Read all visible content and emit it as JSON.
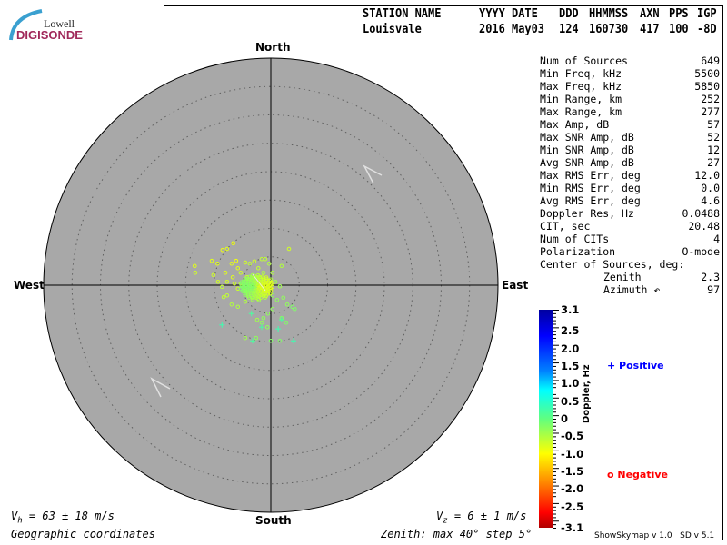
{
  "logo": {
    "line1": "Lowell",
    "line2": "DIGISONDE"
  },
  "header": {
    "labels": [
      "STATION NAME",
      "YYYY DATE",
      "DDD",
      "HHMMSS",
      "AXN",
      "PPS",
      "IGP"
    ],
    "values": [
      "Louisvale",
      "2016 May03",
      "124",
      "160730",
      "417",
      "100",
      "-8D"
    ]
  },
  "compass": {
    "north": "North",
    "south": "South",
    "east": "East",
    "west": "West"
  },
  "stats": [
    {
      "label": "Num of Sources",
      "value": "649"
    },
    {
      "label": "Min Freq, kHz",
      "value": "5500"
    },
    {
      "label": "Max Freq, kHz",
      "value": "5850"
    },
    {
      "label": "Min Range, km",
      "value": "252"
    },
    {
      "label": "Max Range, km",
      "value": "277"
    },
    {
      "label": "Max Amp, dB",
      "value": "57"
    },
    {
      "label": "Max SNR Amp, dB",
      "value": "52"
    },
    {
      "label": "Min SNR Amp, dB",
      "value": "12"
    },
    {
      "label": "Avg SNR Amp, dB",
      "value": "27"
    },
    {
      "label": "Max RMS Err, deg",
      "value": "12.0"
    },
    {
      "label": "Min RMS Err, deg",
      "value": "0.0"
    },
    {
      "label": "Avg RMS Err, deg",
      "value": "4.6"
    },
    {
      "label": "Doppler Res, Hz",
      "value": "0.0488"
    },
    {
      "label": "CIT, sec",
      "value": "20.48"
    },
    {
      "label": "Num of CITs",
      "value": "4"
    },
    {
      "label": "Polarization",
      "value": "O-mode"
    }
  ],
  "center": {
    "title": "Center of Sources, deg:",
    "zenith_label": "Zenith",
    "zenith": "2.3",
    "azimuth_label": "Azimuth ↶",
    "azimuth": "97"
  },
  "footer": {
    "vh": "= 63 ± 18 m/s",
    "vz": "= 6 ± 1 m/s",
    "coords": "Geographic coordinates",
    "zenith_info": "Zenith: max 40°  step 5°",
    "version": "ShowSkymap v 1.0   SD v 5.1"
  },
  "legend": {
    "positive": "Positive",
    "negative": "Negative",
    "positive_color": "#0000ff",
    "negative_color": "#ff0000"
  },
  "chart_data": {
    "type": "scatter",
    "projection": "polar sky map, zenith radial, azimuth from North",
    "zenith_max_deg": 40,
    "zenith_step_deg": 5,
    "background_color": "#a8a8a8",
    "colorbar": {
      "label": "Doppler, Hz",
      "range": [
        -3.1,
        3.1
      ],
      "ticks": [
        "3.1",
        "2.5",
        "2.0",
        "1.5",
        "1.0",
        "0.5",
        "0",
        "-0.5",
        "-1.0",
        "-1.5",
        "-2.0",
        "-2.5",
        "-3.1"
      ],
      "colormap": "jet"
    },
    "point_fields": [
      "east_deg",
      "north_deg",
      "doppler_hz"
    ],
    "negative_points": [
      [
        -6.6,
        7.4,
        -0.9
      ],
      [
        -8.5,
        6.2,
        -0.9
      ],
      [
        -7.7,
        6.4,
        -0.8
      ],
      [
        -10.4,
        4.3,
        -0.8
      ],
      [
        -13.3,
        2.2,
        -0.7
      ],
      [
        -13.4,
        3.4,
        -0.8
      ],
      [
        -9.4,
        3.8,
        -0.8
      ],
      [
        -6.9,
        3.8,
        -0.8
      ],
      [
        -6.1,
        4.3,
        -0.9
      ],
      [
        -4.5,
        4.0,
        -0.7
      ],
      [
        -3.7,
        3.8,
        -0.6
      ],
      [
        -2.9,
        4.2,
        -0.7
      ],
      [
        -1.6,
        4.6,
        -0.6
      ],
      [
        -1.0,
        4.6,
        -0.6
      ],
      [
        -0.3,
        3.8,
        -0.5
      ],
      [
        1.9,
        3.4,
        -0.5
      ],
      [
        3.2,
        6.4,
        -0.7
      ],
      [
        -6.7,
        1.4,
        -0.8
      ],
      [
        -5.3,
        2.2,
        -0.7
      ],
      [
        -4.2,
        1.4,
        -0.7
      ],
      [
        -3.2,
        1.0,
        -0.6
      ],
      [
        -2.6,
        0.3,
        -0.6
      ],
      [
        -1.9,
        -0.2,
        -0.5
      ],
      [
        -1.3,
        -0.6,
        -0.5
      ],
      [
        -0.6,
        -1.0,
        -0.4
      ],
      [
        -2.9,
        -1.0,
        -0.6
      ],
      [
        -4.5,
        -1.0,
        -0.6
      ],
      [
        -5.8,
        -0.6,
        -0.7
      ],
      [
        -7.7,
        -1.8,
        -0.6
      ],
      [
        -8.3,
        -2.1,
        -0.6
      ],
      [
        -6.9,
        -3.4,
        -0.5
      ],
      [
        -5.8,
        -3.8,
        -0.5
      ],
      [
        -4.5,
        -2.9,
        -0.5
      ],
      [
        -3.2,
        -2.6,
        -0.4
      ],
      [
        -2.1,
        -2.6,
        -0.4
      ],
      [
        -1.0,
        -2.2,
        -0.4
      ],
      [
        0.3,
        -1.8,
        -0.3
      ],
      [
        1.1,
        -2.6,
        -0.3
      ],
      [
        2.2,
        -2.2,
        -0.3
      ],
      [
        2.9,
        -3.4,
        -0.3
      ],
      [
        3.8,
        -3.8,
        -0.2
      ],
      [
        4.2,
        -4.2,
        -0.2
      ],
      [
        0.3,
        -4.2,
        -0.3
      ],
      [
        -0.5,
        -5.0,
        -0.3
      ],
      [
        -1.3,
        -5.8,
        -0.3
      ],
      [
        -2.4,
        -6.1,
        -0.4
      ],
      [
        -1.6,
        -6.6,
        -0.3
      ],
      [
        -0.6,
        -7.4,
        -0.3
      ],
      [
        1.9,
        -5.8,
        -0.2
      ],
      [
        2.7,
        -6.6,
        -0.2
      ],
      [
        -4.5,
        -9.3,
        -0.4
      ],
      [
        -2.6,
        -9.3,
        -0.3
      ],
      [
        0,
        -9.8,
        -0.2
      ],
      [
        1.6,
        -9.8,
        -0.2
      ],
      [
        -10.1,
        1.8,
        -0.7
      ],
      [
        -9.3,
        0.6,
        -0.7
      ],
      [
        -8.6,
        -0.3,
        -0.6
      ],
      [
        -7.7,
        0.6,
        -0.7
      ],
      [
        -6.4,
        0.3,
        -0.7
      ],
      [
        -5.3,
        0.3,
        -0.6
      ],
      [
        -3.7,
        -0.2,
        -0.6
      ],
      [
        -2.4,
        1.4,
        -0.6
      ],
      [
        -1.3,
        2.2,
        -0.5
      ],
      [
        0,
        1.0,
        -0.5
      ],
      [
        0.8,
        0.6,
        -0.4
      ],
      [
        1.6,
        -0.2,
        -0.4
      ],
      [
        0.3,
        2.2,
        -0.5
      ],
      [
        -2.2,
        3.0,
        -0.6
      ],
      [
        -5.8,
        3.0,
        -0.8
      ],
      [
        -8.0,
        2.2,
        -0.8
      ]
    ],
    "positive_points": [
      [
        -8.6,
        -7.0,
        0.3
      ],
      [
        -3.4,
        -5.0,
        0.2
      ],
      [
        -1.6,
        -7.4,
        0.2
      ],
      [
        1.3,
        -7.7,
        0.3
      ],
      [
        1.9,
        -6.1,
        0.2
      ],
      [
        4.0,
        -9.8,
        0.3
      ],
      [
        -3.2,
        -9.8,
        0.2
      ]
    ],
    "velocity_arrows": [
      {
        "direction": "toward NW"
      },
      {
        "direction": "toward NW"
      }
    ]
  }
}
